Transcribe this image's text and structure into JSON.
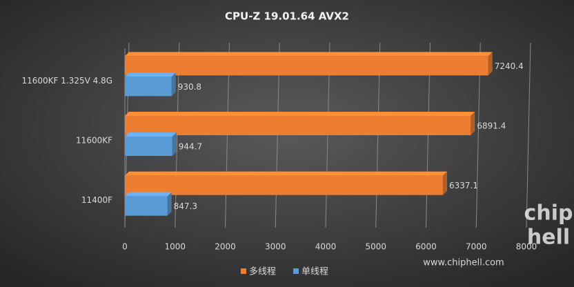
{
  "chart_data": {
    "type": "bar",
    "orientation": "horizontal",
    "title": "CPU-Z  19.01.64  AVX2",
    "categories": [
      "11600KF 1.325V 4.8G",
      "11600KF",
      "11400F"
    ],
    "series": [
      {
        "name": "多线程",
        "color": "#ed7d31",
        "values": [
          7240.4,
          6891.4,
          6337.1
        ]
      },
      {
        "name": "单线程",
        "color": "#5b9bd5",
        "values": [
          930.8,
          944.7,
          847.3
        ]
      }
    ],
    "xlim": [
      0,
      8000
    ],
    "xticks": [
      0,
      1000,
      2000,
      3000,
      4000,
      5000,
      6000,
      7000,
      8000
    ],
    "grid": true,
    "legend": "bottom"
  },
  "watermark": {
    "logo_top": "chip",
    "logo_bottom": "hell",
    "url": "www.chiphell.com"
  }
}
